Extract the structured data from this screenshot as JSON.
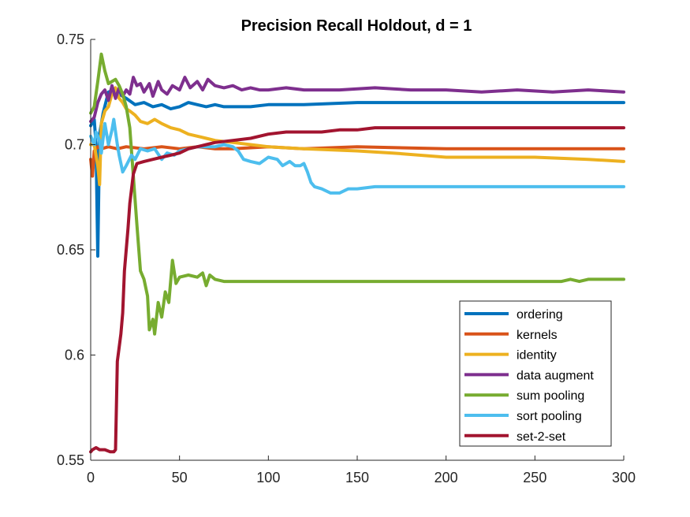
{
  "chart_data": {
    "type": "line",
    "title": "Precision Recall Holdout, d = 1",
    "xlabel": "",
    "ylabel": "",
    "xlim": [
      0,
      300
    ],
    "ylim": [
      0.55,
      0.75
    ],
    "xticks": [
      0,
      50,
      100,
      150,
      200,
      250,
      300
    ],
    "yticks": [
      0.55,
      0.6,
      0.65,
      0.7,
      0.75
    ],
    "xtick_labels": [
      "0",
      "50",
      "100",
      "150",
      "200",
      "250",
      "300"
    ],
    "ytick_labels": [
      "0.55",
      "0.6",
      "0.65",
      "0.7",
      "0.75"
    ],
    "legend_position": "bottom-right",
    "series": [
      {
        "name": "ordering",
        "color": "#0072BD",
        "points": [
          [
            0,
            0.709
          ],
          [
            2,
            0.712
          ],
          [
            3,
            0.7
          ],
          [
            4,
            0.647
          ],
          [
            5,
            0.705
          ],
          [
            7,
            0.715
          ],
          [
            10,
            0.725
          ],
          [
            13,
            0.726
          ],
          [
            16,
            0.724
          ],
          [
            20,
            0.722
          ],
          [
            25,
            0.719
          ],
          [
            30,
            0.72
          ],
          [
            35,
            0.718
          ],
          [
            40,
            0.719
          ],
          [
            45,
            0.717
          ],
          [
            50,
            0.718
          ],
          [
            55,
            0.72
          ],
          [
            60,
            0.719
          ],
          [
            65,
            0.718
          ],
          [
            70,
            0.719
          ],
          [
            75,
            0.718
          ],
          [
            80,
            0.718
          ],
          [
            90,
            0.718
          ],
          [
            100,
            0.719
          ],
          [
            120,
            0.719
          ],
          [
            150,
            0.72
          ],
          [
            200,
            0.72
          ],
          [
            250,
            0.72
          ],
          [
            300,
            0.72
          ]
        ]
      },
      {
        "name": "kernels",
        "color": "#D95319",
        "points": [
          [
            0,
            0.693
          ],
          [
            1,
            0.685
          ],
          [
            2,
            0.697
          ],
          [
            4,
            0.699
          ],
          [
            6,
            0.698
          ],
          [
            10,
            0.699
          ],
          [
            15,
            0.698
          ],
          [
            20,
            0.699
          ],
          [
            30,
            0.698
          ],
          [
            40,
            0.699
          ],
          [
            50,
            0.698
          ],
          [
            60,
            0.699
          ],
          [
            70,
            0.698
          ],
          [
            80,
            0.698
          ],
          [
            100,
            0.699
          ],
          [
            120,
            0.698
          ],
          [
            150,
            0.699
          ],
          [
            200,
            0.698
          ],
          [
            250,
            0.698
          ],
          [
            300,
            0.698
          ]
        ]
      },
      {
        "name": "identity",
        "color": "#EDB120",
        "points": [
          [
            0,
            0.7
          ],
          [
            2,
            0.7
          ],
          [
            4,
            0.69
          ],
          [
            5,
            0.681
          ],
          [
            6,
            0.71
          ],
          [
            8,
            0.716
          ],
          [
            10,
            0.718
          ],
          [
            12,
            0.724
          ],
          [
            14,
            0.727
          ],
          [
            16,
            0.722
          ],
          [
            18,
            0.72
          ],
          [
            20,
            0.717
          ],
          [
            22,
            0.716
          ],
          [
            25,
            0.714
          ],
          [
            28,
            0.711
          ],
          [
            32,
            0.71
          ],
          [
            36,
            0.712
          ],
          [
            40,
            0.71
          ],
          [
            45,
            0.708
          ],
          [
            50,
            0.707
          ],
          [
            55,
            0.705
          ],
          [
            60,
            0.704
          ],
          [
            65,
            0.703
          ],
          [
            70,
            0.702
          ],
          [
            80,
            0.701
          ],
          [
            90,
            0.7
          ],
          [
            100,
            0.699
          ],
          [
            120,
            0.698
          ],
          [
            150,
            0.697
          ],
          [
            170,
            0.696
          ],
          [
            200,
            0.694
          ],
          [
            250,
            0.694
          ],
          [
            280,
            0.693
          ],
          [
            300,
            0.692
          ]
        ]
      },
      {
        "name": "data augment",
        "color": "#7E2F8E",
        "points": [
          [
            0,
            0.711
          ],
          [
            2,
            0.713
          ],
          [
            4,
            0.72
          ],
          [
            6,
            0.724
          ],
          [
            8,
            0.726
          ],
          [
            10,
            0.721
          ],
          [
            12,
            0.728
          ],
          [
            14,
            0.722
          ],
          [
            16,
            0.727
          ],
          [
            18,
            0.723
          ],
          [
            20,
            0.726
          ],
          [
            22,
            0.724
          ],
          [
            24,
            0.732
          ],
          [
            26,
            0.728
          ],
          [
            28,
            0.729
          ],
          [
            30,
            0.725
          ],
          [
            33,
            0.729
          ],
          [
            35,
            0.723
          ],
          [
            38,
            0.73
          ],
          [
            40,
            0.726
          ],
          [
            43,
            0.724
          ],
          [
            46,
            0.728
          ],
          [
            50,
            0.726
          ],
          [
            53,
            0.732
          ],
          [
            56,
            0.727
          ],
          [
            60,
            0.73
          ],
          [
            63,
            0.726
          ],
          [
            66,
            0.731
          ],
          [
            70,
            0.728
          ],
          [
            75,
            0.727
          ],
          [
            80,
            0.728
          ],
          [
            85,
            0.726
          ],
          [
            90,
            0.727
          ],
          [
            95,
            0.726
          ],
          [
            100,
            0.726
          ],
          [
            110,
            0.727
          ],
          [
            120,
            0.726
          ],
          [
            140,
            0.726
          ],
          [
            160,
            0.727
          ],
          [
            180,
            0.726
          ],
          [
            200,
            0.726
          ],
          [
            220,
            0.725
          ],
          [
            240,
            0.726
          ],
          [
            260,
            0.725
          ],
          [
            280,
            0.726
          ],
          [
            300,
            0.725
          ]
        ]
      },
      {
        "name": "sum pooling",
        "color": "#77AC30",
        "points": [
          [
            0,
            0.715
          ],
          [
            2,
            0.718
          ],
          [
            4,
            0.73
          ],
          [
            6,
            0.743
          ],
          [
            8,
            0.735
          ],
          [
            10,
            0.729
          ],
          [
            12,
            0.73
          ],
          [
            14,
            0.731
          ],
          [
            16,
            0.728
          ],
          [
            18,
            0.724
          ],
          [
            20,
            0.718
          ],
          [
            22,
            0.708
          ],
          [
            24,
            0.685
          ],
          [
            26,
            0.662
          ],
          [
            28,
            0.64
          ],
          [
            30,
            0.636
          ],
          [
            32,
            0.628
          ],
          [
            33,
            0.612
          ],
          [
            35,
            0.617
          ],
          [
            36,
            0.61
          ],
          [
            38,
            0.625
          ],
          [
            40,
            0.618
          ],
          [
            42,
            0.63
          ],
          [
            44,
            0.625
          ],
          [
            46,
            0.645
          ],
          [
            48,
            0.634
          ],
          [
            50,
            0.637
          ],
          [
            55,
            0.638
          ],
          [
            60,
            0.637
          ],
          [
            63,
            0.639
          ],
          [
            65,
            0.633
          ],
          [
            67,
            0.638
          ],
          [
            70,
            0.636
          ],
          [
            75,
            0.635
          ],
          [
            80,
            0.635
          ],
          [
            100,
            0.635
          ],
          [
            150,
            0.635
          ],
          [
            200,
            0.635
          ],
          [
            240,
            0.635
          ],
          [
            265,
            0.635
          ],
          [
            270,
            0.636
          ],
          [
            275,
            0.635
          ],
          [
            280,
            0.636
          ],
          [
            290,
            0.636
          ],
          [
            300,
            0.636
          ]
        ]
      },
      {
        "name": "sort pooling",
        "color": "#4DBEEE",
        "points": [
          [
            0,
            0.704
          ],
          [
            2,
            0.7
          ],
          [
            3,
            0.706
          ],
          [
            5,
            0.702
          ],
          [
            6,
            0.696
          ],
          [
            8,
            0.71
          ],
          [
            10,
            0.7
          ],
          [
            12,
            0.707
          ],
          [
            13,
            0.712
          ],
          [
            15,
            0.7
          ],
          [
            16,
            0.695
          ],
          [
            18,
            0.687
          ],
          [
            20,
            0.69
          ],
          [
            23,
            0.695
          ],
          [
            25,
            0.693
          ],
          [
            28,
            0.698
          ],
          [
            32,
            0.697
          ],
          [
            36,
            0.698
          ],
          [
            40,
            0.693
          ],
          [
            43,
            0.696
          ],
          [
            47,
            0.695
          ],
          [
            50,
            0.697
          ],
          [
            55,
            0.698
          ],
          [
            60,
            0.699
          ],
          [
            65,
            0.699
          ],
          [
            70,
            0.699
          ],
          [
            75,
            0.7
          ],
          [
            80,
            0.699
          ],
          [
            83,
            0.697
          ],
          [
            86,
            0.693
          ],
          [
            90,
            0.692
          ],
          [
            95,
            0.691
          ],
          [
            100,
            0.694
          ],
          [
            105,
            0.693
          ],
          [
            108,
            0.69
          ],
          [
            112,
            0.692
          ],
          [
            115,
            0.69
          ],
          [
            118,
            0.69
          ],
          [
            120,
            0.691
          ],
          [
            122,
            0.687
          ],
          [
            124,
            0.682
          ],
          [
            126,
            0.68
          ],
          [
            130,
            0.679
          ],
          [
            135,
            0.677
          ],
          [
            140,
            0.677
          ],
          [
            145,
            0.679
          ],
          [
            150,
            0.679
          ],
          [
            160,
            0.68
          ],
          [
            170,
            0.68
          ],
          [
            200,
            0.68
          ],
          [
            250,
            0.68
          ],
          [
            300,
            0.68
          ]
        ]
      },
      {
        "name": "set-2-set",
        "color": "#A2142F",
        "points": [
          [
            0,
            0.554
          ],
          [
            1,
            0.555
          ],
          [
            3,
            0.556
          ],
          [
            5,
            0.555
          ],
          [
            8,
            0.555
          ],
          [
            11,
            0.554
          ],
          [
            13,
            0.554
          ],
          [
            14,
            0.555
          ],
          [
            15,
            0.597
          ],
          [
            17,
            0.61
          ],
          [
            18,
            0.62
          ],
          [
            19,
            0.64
          ],
          [
            21,
            0.66
          ],
          [
            22,
            0.672
          ],
          [
            24,
            0.686
          ],
          [
            26,
            0.691
          ],
          [
            30,
            0.692
          ],
          [
            35,
            0.693
          ],
          [
            40,
            0.694
          ],
          [
            45,
            0.695
          ],
          [
            50,
            0.696
          ],
          [
            55,
            0.698
          ],
          [
            60,
            0.699
          ],
          [
            65,
            0.7
          ],
          [
            70,
            0.701
          ],
          [
            80,
            0.702
          ],
          [
            90,
            0.703
          ],
          [
            100,
            0.705
          ],
          [
            110,
            0.706
          ],
          [
            120,
            0.706
          ],
          [
            130,
            0.706
          ],
          [
            140,
            0.707
          ],
          [
            150,
            0.707
          ],
          [
            160,
            0.708
          ],
          [
            170,
            0.708
          ],
          [
            180,
            0.708
          ],
          [
            200,
            0.708
          ],
          [
            250,
            0.708
          ],
          [
            300,
            0.708
          ]
        ]
      }
    ]
  }
}
